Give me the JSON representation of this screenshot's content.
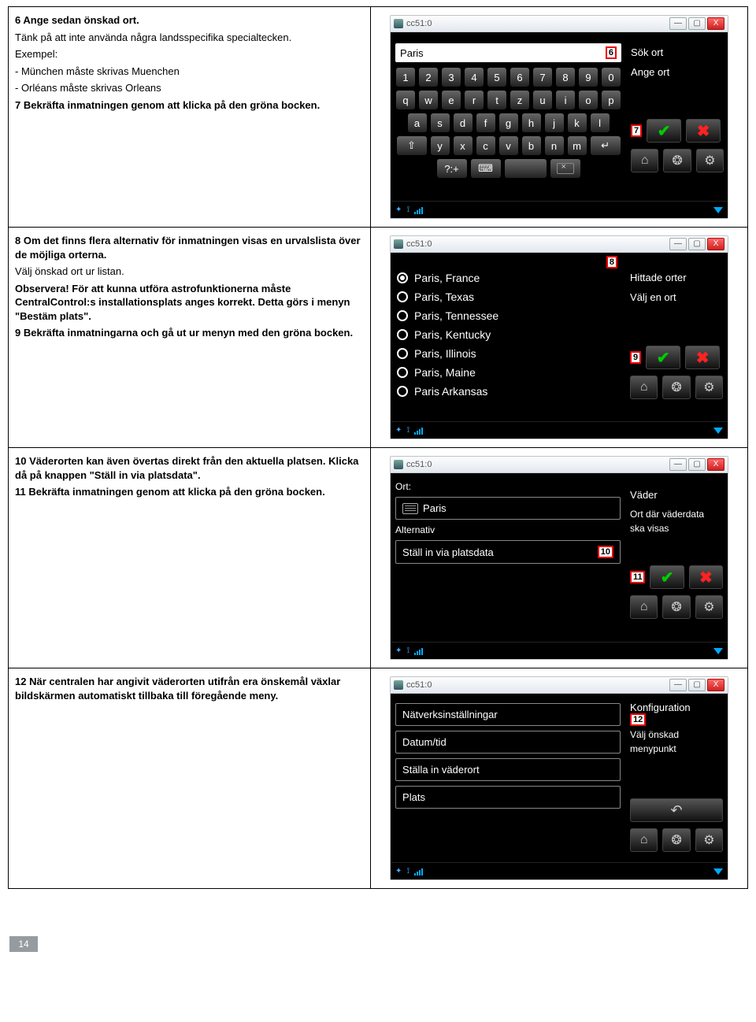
{
  "pageNumber": "14",
  "winTitle": "cc51:0",
  "steps": {
    "s6": {
      "l1": "6 Ange sedan önskad ort.",
      "l2": "Tänk på att inte använda några landsspecifika specialtecken.",
      "l3": "Exempel:",
      "l4": "- München måste skrivas Muenchen",
      "l5": "- Orléans måste skrivas Orleans",
      "l6": "7 Bekräfta inmatningen genom att klicka på den gröna bocken."
    },
    "s8": {
      "l1": "8 Om det finns flera alternativ för inmatningen visas en urvalslista över de möjliga orterna.",
      "l2": "Välj önskad ort ur listan.",
      "l3": "Observera! För att kunna utföra astrofunktionerna måste CentralControl:s installationsplats anges korrekt. Detta görs i menyn \"Bestäm plats\".",
      "l4": "9 Bekräfta inmatningarna och gå ut ur menyn med den gröna bocken."
    },
    "s10": {
      "l1": "10 Väderorten kan även övertas direkt från den aktuella platsen. Klicka då på knappen \"Ställ in via platsdata\".",
      "l2": "11 Bekräfta inmatningen genom att klicka på den gröna bocken."
    },
    "s12": {
      "l1": "12 När centralen har angivit väderorten utifrån era önskemål växlar bildskärmen automatiskt tillbaka till föregående meny."
    }
  },
  "screen1": {
    "input": "Paris",
    "side1": "Sök ort",
    "side2": "Ange ort",
    "callout6": "6",
    "callout7": "7",
    "keys": {
      "r1": [
        "1",
        "2",
        "3",
        "4",
        "5",
        "6",
        "7",
        "8",
        "9",
        "0"
      ],
      "r2": [
        "q",
        "w",
        "e",
        "r",
        "t",
        "z",
        "u",
        "i",
        "o",
        "p"
      ],
      "r3": [
        "a",
        "s",
        "d",
        "f",
        "g",
        "h",
        "j",
        "k",
        "l"
      ],
      "r4_shift": "⇧",
      "r4": [
        "y",
        "x",
        "c",
        "v",
        "b",
        "n",
        "m"
      ],
      "r4_enter": "↵",
      "r5_sym": "?:+",
      "r5_kbd": "⌨"
    }
  },
  "screen2": {
    "side1": "Hittade orter",
    "side2": "Välj en ort",
    "callout8": "8",
    "callout9": "9",
    "options": [
      "Paris, France",
      "Paris, Texas",
      "Paris, Tennessee",
      "Paris, Kentucky",
      "Paris, Illinois",
      "Paris, Maine",
      "Paris  Arkansas"
    ]
  },
  "screen3": {
    "ortLabel": "Ort:",
    "ortValue": "Paris",
    "altLabel": "Alternativ",
    "altBtn": "Ställ in via platsdata",
    "side1": "Väder",
    "side2a": "Ort där väderdata",
    "side2b": "ska visas",
    "callout10": "10",
    "callout11": "11"
  },
  "screen4": {
    "opt1": "Nätverksinställningar",
    "opt2": "Datum/tid",
    "opt3": "Ställa in väderort",
    "opt4": "Plats",
    "side1": "Konfiguration",
    "side2a": "Välj önskad",
    "side2b": "menypunkt",
    "callout12": "12"
  },
  "winBtns": {
    "min": "—",
    "max": "▢",
    "close": "X"
  }
}
